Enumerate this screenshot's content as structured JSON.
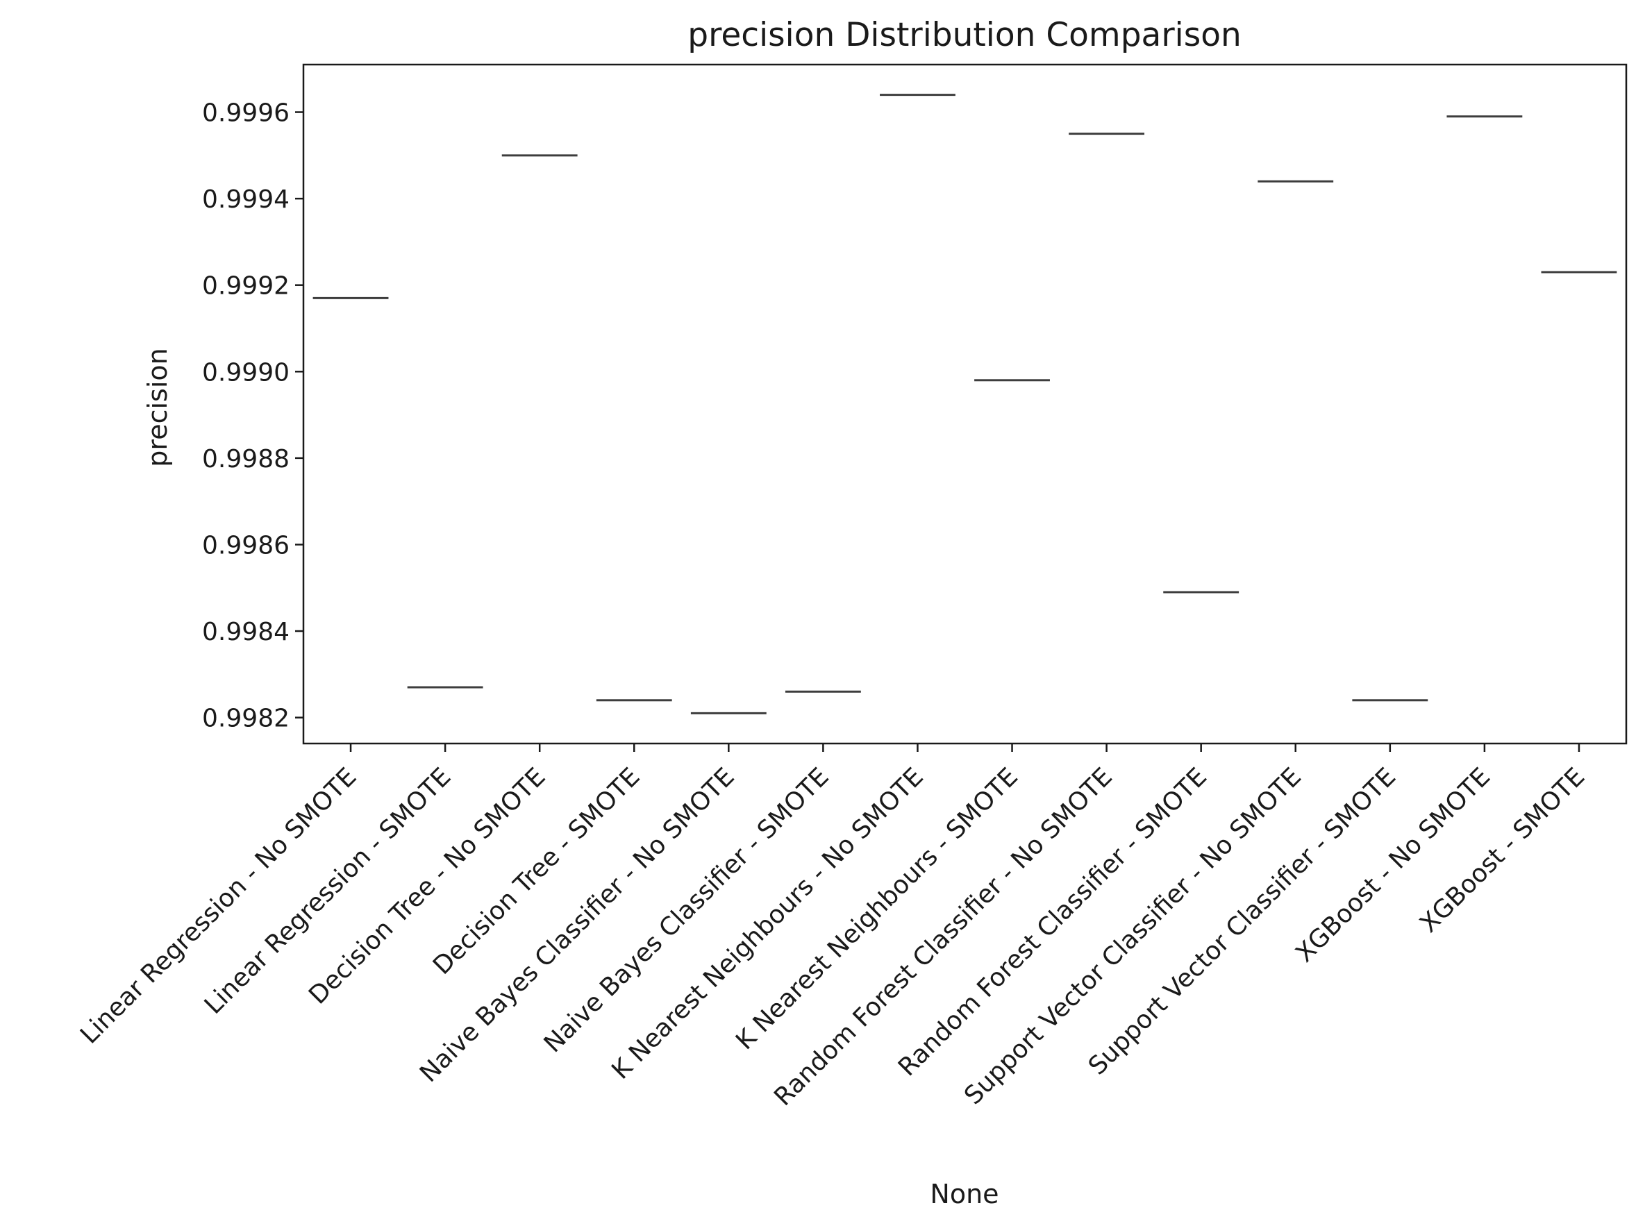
{
  "chart_data": {
    "type": "box",
    "title": "precision Distribution Comparison",
    "xlabel": "None",
    "ylabel": "precision",
    "ylim": [
      0.99814,
      0.99971
    ],
    "yticks": [
      0.9982,
      0.9984,
      0.9986,
      0.9988,
      0.999,
      0.9992,
      0.9994,
      0.9996
    ],
    "ytick_labels": [
      "0.9982",
      "0.9984",
      "0.9986",
      "0.9988",
      "0.9990",
      "0.9992",
      "0.9994",
      "0.9996"
    ],
    "grid": false,
    "categories": [
      "Linear Regression - No SMOTE",
      "Linear Regression - SMOTE",
      "Decision Tree - No SMOTE",
      "Decision Tree - SMOTE",
      "Naive Bayes Classifier - No SMOTE",
      "Naive Bayes Classifier - SMOTE",
      "K Nearest Neighbours - No SMOTE",
      "K Nearest Neighbours - SMOTE",
      "Random Forest Classifier - No SMOTE",
      "Random Forest Classifier - SMOTE",
      "Support Vector Classifier - No SMOTE",
      "Support Vector Classifier - SMOTE",
      "XGBoost - No SMOTE",
      "XGBoost - SMOTE"
    ],
    "values": [
      0.99917,
      0.99827,
      0.9995,
      0.99824,
      0.99821,
      0.99826,
      0.99964,
      0.99898,
      0.99955,
      0.99849,
      0.99944,
      0.99824,
      0.99959,
      0.99923
    ],
    "line_color": "#3d3d3d"
  }
}
